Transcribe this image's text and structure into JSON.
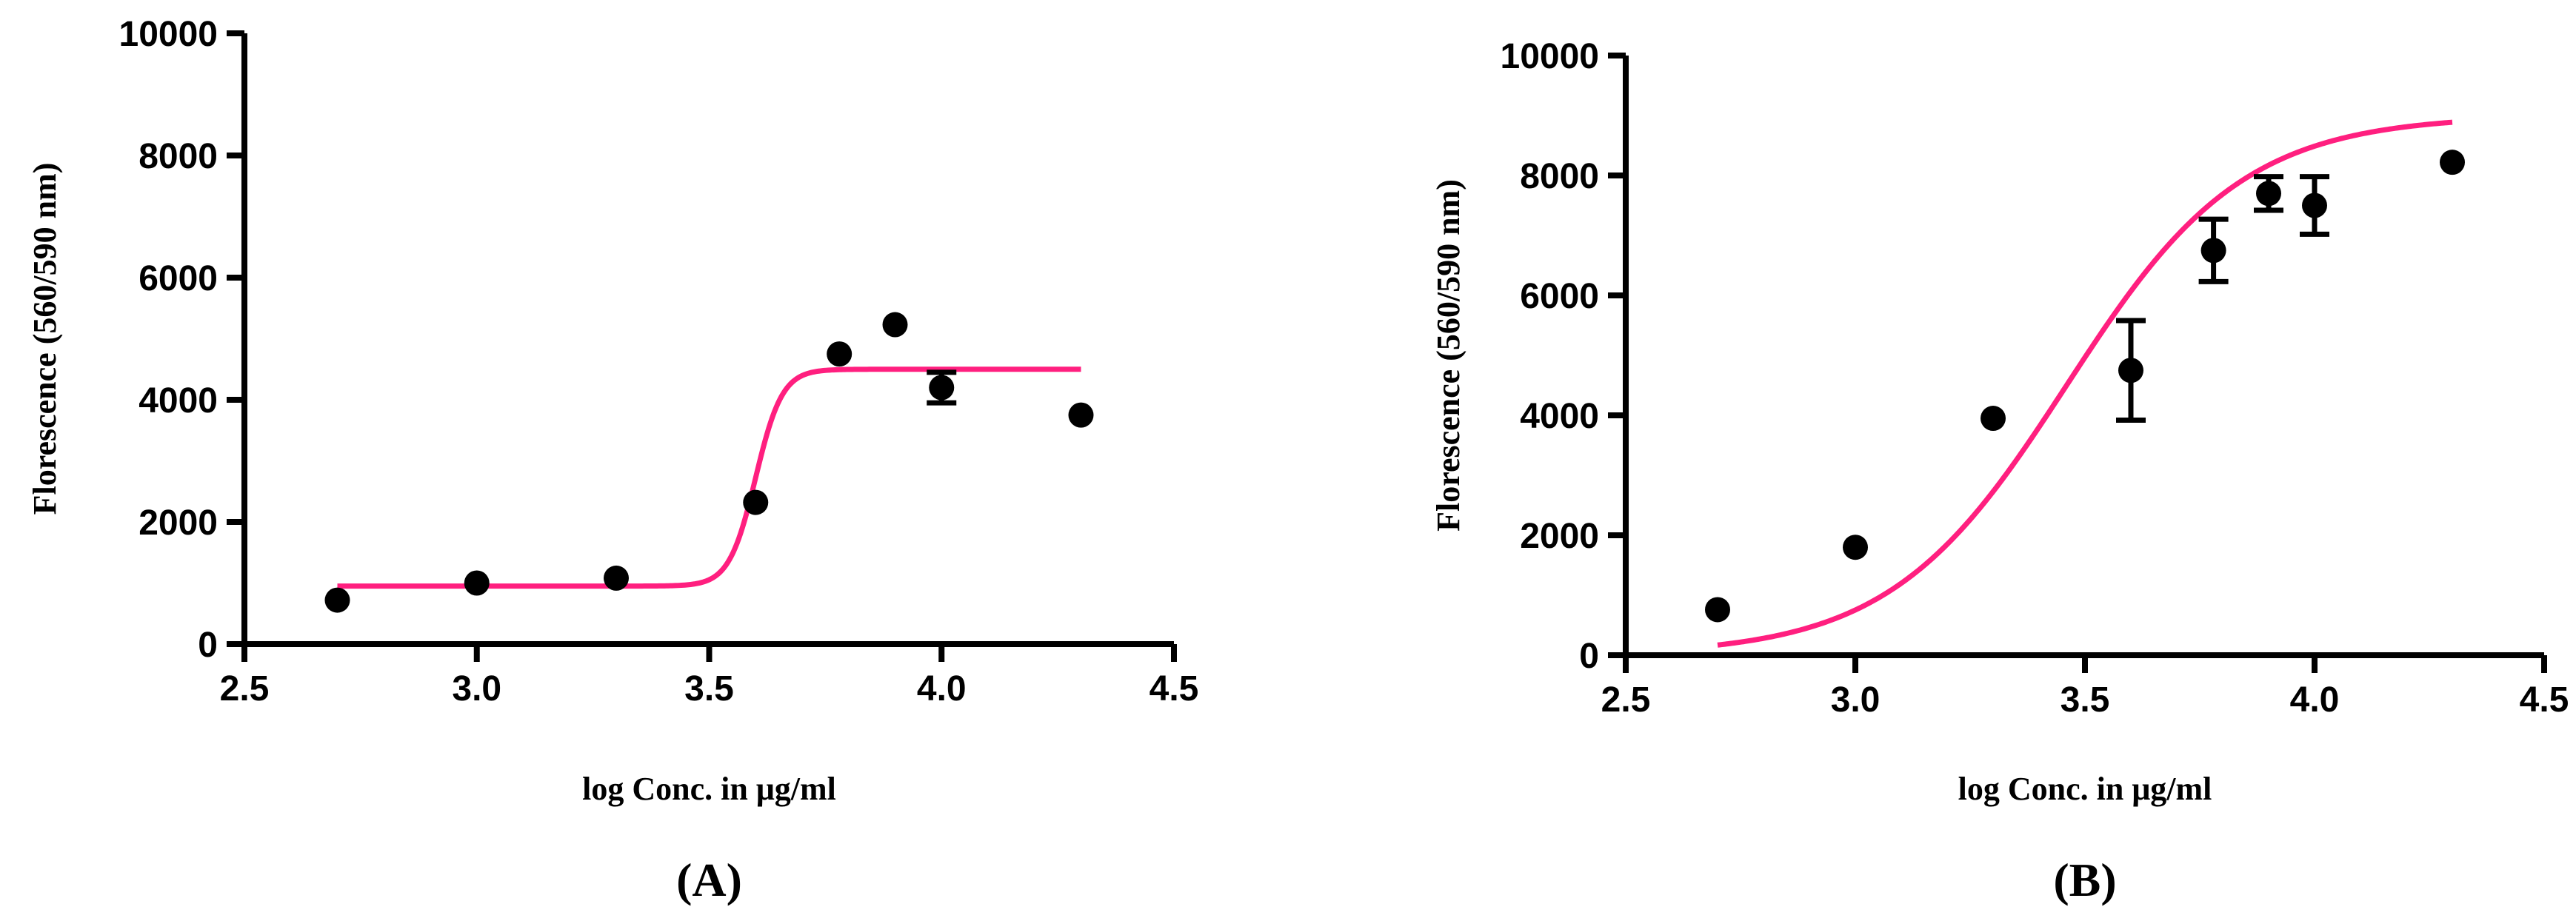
{
  "figure": {
    "curve_color": "#ff1f7f",
    "marker_color": "#000000"
  },
  "chart_data": [
    {
      "id": "A",
      "type": "scatter",
      "title": "(A)",
      "xlabel": "log Conc. in μg/ml",
      "ylabel": "Florescence (560/590 nm)",
      "xlim": [
        2.5,
        4.5
      ],
      "ylim": [
        0,
        10000
      ],
      "xticks": [
        "2.5",
        "3.0",
        "3.5",
        "4.0",
        "4.5"
      ],
      "yticks": [
        "0",
        "2000",
        "4000",
        "6000",
        "8000",
        "10000"
      ],
      "grid": false,
      "points": [
        {
          "x": 2.7,
          "y": 720
        },
        {
          "x": 3.0,
          "y": 1000
        },
        {
          "x": 3.3,
          "y": 1080
        },
        {
          "x": 3.6,
          "y": 2320
        },
        {
          "x": 3.78,
          "y": 4750
        },
        {
          "x": 3.9,
          "y": 5230
        },
        {
          "x": 4.0,
          "y": 4200,
          "err": 250
        },
        {
          "x": 4.3,
          "y": 3750
        }
      ],
      "fit": {
        "model": "sigmoid",
        "bottom": 950,
        "top": 4500,
        "x50": 3.6,
        "slope": 35,
        "xrange": [
          2.7,
          4.3
        ]
      }
    },
    {
      "id": "B",
      "type": "scatter",
      "title": "(B)",
      "xlabel": "log Conc. in μg/ml",
      "ylabel": "Florescence (560/590 nm)",
      "xlim": [
        2.5,
        4.5
      ],
      "ylim": [
        0,
        10000
      ],
      "xticks": [
        "2.5",
        "3.0",
        "3.5",
        "4.0",
        "4.5"
      ],
      "yticks": [
        "0",
        "2000",
        "4000",
        "6000",
        "8000",
        "10000"
      ],
      "grid": false,
      "points": [
        {
          "x": 2.7,
          "y": 760
        },
        {
          "x": 3.0,
          "y": 1800
        },
        {
          "x": 3.3,
          "y": 3950
        },
        {
          "x": 3.6,
          "y": 4750,
          "err": 830
        },
        {
          "x": 3.78,
          "y": 6750,
          "err": 520
        },
        {
          "x": 3.9,
          "y": 7700,
          "err": 280
        },
        {
          "x": 4.0,
          "y": 7500,
          "err": 480
        },
        {
          "x": 4.3,
          "y": 8220
        }
      ],
      "fit": {
        "model": "sigmoid",
        "bottom": 0,
        "top": 9000,
        "x50": 3.46,
        "slope": 5.2,
        "xrange": [
          2.7,
          4.3
        ]
      }
    }
  ]
}
